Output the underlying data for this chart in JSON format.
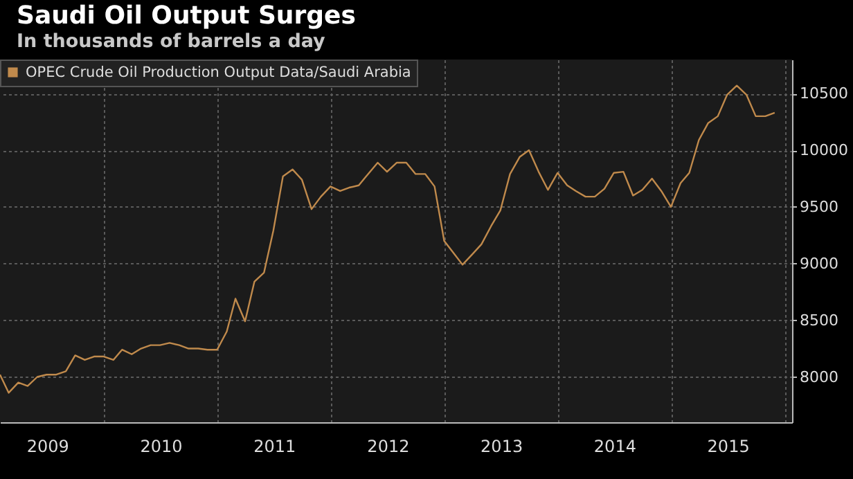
{
  "chart_data": {
    "type": "line",
    "title": "Saudi Oil Output Surges",
    "subtitle": "In thousands of barrels a day",
    "x": [
      "2009-01-31",
      "2009-02-28",
      "2009-03-31",
      "2009-04-30",
      "2009-05-31",
      "2009-06-30",
      "2009-07-31",
      "2009-08-31",
      "2009-09-30",
      "2009-10-31",
      "2009-11-30",
      "2009-12-31",
      "2010-01-31",
      "2010-02-28",
      "2010-03-31",
      "2010-04-30",
      "2010-05-31",
      "2010-06-30",
      "2010-07-31",
      "2010-08-31",
      "2010-09-30",
      "2010-10-31",
      "2010-11-30",
      "2010-12-31",
      "2011-01-31",
      "2011-02-28",
      "2011-03-31",
      "2011-04-30",
      "2011-05-31",
      "2011-06-30",
      "2011-07-31",
      "2011-08-31",
      "2011-09-30",
      "2011-10-31",
      "2011-11-30",
      "2011-12-31",
      "2012-01-31",
      "2012-02-29",
      "2012-03-31",
      "2012-04-30",
      "2012-05-31",
      "2012-06-30",
      "2012-07-31",
      "2012-08-31",
      "2012-09-30",
      "2012-10-31",
      "2012-11-30",
      "2012-12-31",
      "2013-01-31",
      "2013-02-28",
      "2013-03-31",
      "2013-04-30",
      "2013-05-31",
      "2013-06-30",
      "2013-07-31",
      "2013-08-31",
      "2013-09-30",
      "2013-10-31",
      "2013-11-30",
      "2013-12-31",
      "2014-01-31",
      "2014-02-28",
      "2014-03-31",
      "2014-04-30",
      "2014-05-31",
      "2014-06-30",
      "2014-07-31",
      "2014-08-31",
      "2014-09-30",
      "2014-10-31",
      "2014-11-30",
      "2014-12-31",
      "2015-01-31",
      "2015-02-28",
      "2015-03-31",
      "2015-04-30",
      "2015-05-31",
      "2015-06-30",
      "2015-07-31",
      "2015-08-31",
      "2015-09-30",
      "2015-10-31",
      "2015-11-30"
    ],
    "series": [
      {
        "name": "OPEC Crude Oil Production Output Data/Saudi Arabia",
        "color": "#c08a4c",
        "values": [
          8020,
          7860,
          7950,
          7920,
          8000,
          8020,
          8020,
          8050,
          8190,
          8150,
          8180,
          8180,
          8150,
          8240,
          8200,
          8250,
          8280,
          8280,
          8300,
          8280,
          8250,
          8250,
          8240,
          8240,
          8400,
          8690,
          8490,
          8840,
          8920,
          9290,
          9770,
          9830,
          9740,
          9480,
          9590,
          9680,
          9640,
          9670,
          9690,
          9790,
          9890,
          9810,
          9890,
          9890,
          9790,
          9790,
          9680,
          9200,
          9090,
          8990,
          9080,
          9170,
          9330,
          9470,
          9790,
          9940,
          10000,
          9810,
          9650,
          9800,
          9690,
          9640,
          9590,
          9590,
          9660,
          9800,
          9810,
          9600,
          9650,
          9750,
          9640,
          9500,
          9710,
          9800,
          10090,
          10240,
          10300,
          10490,
          10570,
          10490,
          10300,
          10300,
          10330
        ]
      }
    ],
    "xlim": [
      "2009-01-31",
      "2016-01-25"
    ],
    "xticks": [
      {
        "value": "2010-01-01",
        "label": null
      },
      {
        "value": "2011-01-01",
        "label": null
      },
      {
        "value": "2012-01-01",
        "label": null
      },
      {
        "value": "2013-01-01",
        "label": null
      },
      {
        "value": "2014-01-01",
        "label": null
      },
      {
        "value": "2015-01-01",
        "label": null
      },
      {
        "value": "2016-01-01",
        "label": null
      },
      {
        "value": "2009-07-02",
        "label": "2009"
      },
      {
        "value": "2010-07-02",
        "label": "2010"
      },
      {
        "value": "2011-07-02",
        "label": "2011"
      },
      {
        "value": "2012-07-02",
        "label": "2012"
      },
      {
        "value": "2013-07-02",
        "label": "2013"
      },
      {
        "value": "2014-07-02",
        "label": "2014"
      },
      {
        "value": "2015-07-02",
        "label": "2015"
      }
    ],
    "ylim": [
      7600,
      10800
    ],
    "yticks": [
      8000,
      8500,
      9000,
      9500,
      10000,
      10500
    ],
    "grid": true,
    "legend": "top left",
    "marker": "none",
    "line_style": "solid"
  }
}
